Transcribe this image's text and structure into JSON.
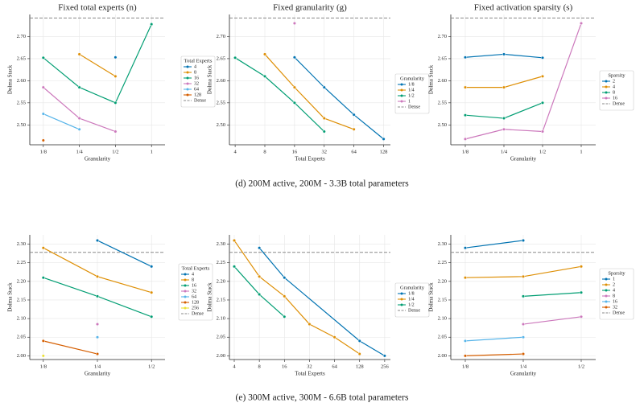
{
  "captions": [
    "(d) 200M active, 200M - 3.3B total parameters",
    "(e) 300M active, 300M - 6.6B total parameters"
  ],
  "chart_data": [
    {
      "type": "line",
      "title": "Fixed total experts (n)",
      "x_label": "Granularity",
      "y_label": "Dolma Stack",
      "categories": [
        "1/8",
        "1/4",
        "1/2",
        "1"
      ],
      "ylim": [
        2.455,
        2.75
      ],
      "yticks": [
        {
          "value": 2.5,
          "label": "2.50"
        },
        2.55,
        {
          "value": 2.6,
          "label": "2.60"
        },
        2.65,
        {
          "value": 2.7,
          "label": "2.70"
        }
      ],
      "grid": true,
      "legend_title": "Total Experts",
      "series": [
        {
          "name": "4",
          "color": "#0173b2",
          "values": [
            null,
            null,
            2.653,
            null
          ]
        },
        {
          "name": "8",
          "color": "#de8f05",
          "values": [
            null,
            2.66,
            2.61,
            null
          ]
        },
        {
          "name": "16",
          "color": "#029e73",
          "values": [
            2.652,
            2.585,
            2.55,
            2.728
          ]
        },
        {
          "name": "32",
          "color": "#cc78bc",
          "values": [
            2.585,
            2.515,
            2.485,
            null
          ]
        },
        {
          "name": "64",
          "color": "#56b4e9",
          "values": [
            2.525,
            2.49,
            null,
            null
          ]
        },
        {
          "name": "128",
          "color": "#d55e00",
          "values": [
            2.465,
            null,
            null,
            null
          ]
        }
      ],
      "hline": {
        "name": "Dense",
        "value": 2.742,
        "color": "#888888"
      }
    },
    {
      "type": "line",
      "title": "Fixed granularity (g)",
      "x_label": "Total Experts",
      "y_label": "Dolma Stack",
      "xscale": "log",
      "xlim": [
        3.5,
        150
      ],
      "xticks": [
        4,
        8,
        16,
        32,
        64,
        128
      ],
      "ylim": [
        2.455,
        2.75
      ],
      "yticks": [
        {
          "value": 2.5,
          "label": "2.50"
        },
        2.55,
        {
          "value": 2.6,
          "label": "2.60"
        },
        2.65,
        {
          "value": 2.7,
          "label": "2.70"
        }
      ],
      "grid": true,
      "legend_title": "Granularity",
      "series": [
        {
          "name": "1/8",
          "color": "#0173b2",
          "x": [
            16,
            32,
            64,
            128
          ],
          "values": [
            2.653,
            2.585,
            2.523,
            2.468
          ]
        },
        {
          "name": "1/4",
          "color": "#de8f05",
          "x": [
            8,
            16,
            32,
            64
          ],
          "values": [
            2.66,
            2.585,
            2.515,
            2.49
          ]
        },
        {
          "name": "1/2",
          "color": "#029e73",
          "x": [
            4,
            8,
            16,
            32
          ],
          "values": [
            2.652,
            2.61,
            2.55,
            2.485
          ]
        },
        {
          "name": "1",
          "color": "#cc78bc",
          "x": [
            16
          ],
          "values": [
            2.73
          ]
        }
      ],
      "hline": {
        "name": "Dense",
        "value": 2.742,
        "color": "#888888"
      }
    },
    {
      "type": "line",
      "title": "Fixed activation sparsity (s)",
      "x_label": "Granularity",
      "y_label": "Dolma Stack",
      "categories": [
        "1/8",
        "1/4",
        "1/2",
        "1"
      ],
      "ylim": [
        2.455,
        2.75
      ],
      "yticks": [
        {
          "value": 2.5,
          "label": "2.50"
        },
        2.55,
        {
          "value": 2.6,
          "label": "2.60"
        },
        2.65,
        {
          "value": 2.7,
          "label": "2.70"
        }
      ],
      "grid": true,
      "legend_title": "Sparsity",
      "series": [
        {
          "name": "2",
          "color": "#0173b2",
          "values": [
            2.653,
            2.66,
            2.652,
            null
          ]
        },
        {
          "name": "4",
          "color": "#de8f05",
          "values": [
            2.585,
            2.585,
            2.61,
            null
          ]
        },
        {
          "name": "8",
          "color": "#029e73",
          "values": [
            2.522,
            2.515,
            2.55,
            null
          ]
        },
        {
          "name": "16",
          "color": "#cc78bc",
          "values": [
            2.468,
            2.49,
            2.485,
            2.73
          ]
        }
      ],
      "hline": {
        "name": "Dense",
        "value": 2.742,
        "color": "#888888"
      }
    },
    {
      "type": "line",
      "x_label": "Granularity",
      "y_label": "Dolma Stack",
      "categories": [
        "1/8",
        "1/4",
        "1/2"
      ],
      "ylim": [
        1.99,
        2.325
      ],
      "yticks": [
        {
          "value": 2.0,
          "label": "2.00"
        },
        2.05,
        {
          "value": 2.1,
          "label": "2.10"
        },
        2.15,
        {
          "value": 2.2,
          "label": "2.20"
        },
        2.25,
        {
          "value": 2.3,
          "label": "2.30"
        }
      ],
      "grid": true,
      "legend_title": "Total Experts",
      "series": [
        {
          "name": "4",
          "color": "#0173b2",
          "values": [
            null,
            2.31,
            2.24
          ]
        },
        {
          "name": "8",
          "color": "#de8f05",
          "values": [
            2.29,
            2.213,
            2.17
          ]
        },
        {
          "name": "16",
          "color": "#029e73",
          "values": [
            2.21,
            2.16,
            2.105
          ]
        },
        {
          "name": "32",
          "color": "#cc78bc",
          "values": [
            null,
            2.085,
            null
          ]
        },
        {
          "name": "64",
          "color": "#56b4e9",
          "values": [
            null,
            2.05,
            null
          ]
        },
        {
          "name": "128",
          "color": "#d55e00",
          "values": [
            2.04,
            2.005,
            null
          ]
        },
        {
          "name": "256",
          "color": "#ece133",
          "values": [
            2.0,
            null,
            null
          ]
        }
      ],
      "hline": {
        "name": "Dense",
        "value": 2.278,
        "color": "#888888"
      }
    },
    {
      "type": "line",
      "x_label": "Total Experts",
      "y_label": "Dolma Stack",
      "xscale": "log",
      "xlim": [
        3.5,
        300
      ],
      "xticks": [
        4,
        8,
        16,
        32,
        64,
        128,
        256
      ],
      "ylim": [
        1.99,
        2.325
      ],
      "yticks": [
        {
          "value": 2.0,
          "label": "2.00"
        },
        2.05,
        {
          "value": 2.1,
          "label": "2.10"
        },
        2.15,
        {
          "value": 2.2,
          "label": "2.20"
        },
        2.25,
        {
          "value": 2.3,
          "label": "2.30"
        }
      ],
      "grid": true,
      "legend_title": "Granularity",
      "series": [
        {
          "name": "1/8",
          "color": "#0173b2",
          "x": [
            8,
            16,
            128,
            256
          ],
          "values": [
            2.29,
            2.21,
            2.04,
            2.0
          ]
        },
        {
          "name": "1/4",
          "color": "#de8f05",
          "x": [
            4,
            8,
            16,
            32,
            64,
            128
          ],
          "values": [
            2.31,
            2.213,
            2.16,
            2.085,
            2.05,
            2.005
          ]
        },
        {
          "name": "1/2",
          "color": "#029e73",
          "x": [
            4,
            8,
            16
          ],
          "values": [
            2.24,
            2.165,
            2.105
          ]
        }
      ],
      "hline": {
        "name": "Dense",
        "value": 2.278,
        "color": "#888888"
      }
    },
    {
      "type": "line",
      "x_label": "Granularity",
      "y_label": "Dolma Stack",
      "categories": [
        "1/8",
        "1/4",
        "1/2"
      ],
      "ylim": [
        1.99,
        2.325
      ],
      "yticks": [
        {
          "value": 2.0,
          "label": "2.00"
        },
        2.05,
        {
          "value": 2.1,
          "label": "2.10"
        },
        2.15,
        {
          "value": 2.2,
          "label": "2.20"
        },
        2.25,
        {
          "value": 2.3,
          "label": "2.30"
        }
      ],
      "grid": true,
      "legend_title": "Sparsity",
      "series": [
        {
          "name": "1",
          "color": "#0173b2",
          "values": [
            2.29,
            2.31,
            null
          ]
        },
        {
          "name": "2",
          "color": "#de8f05",
          "values": [
            2.21,
            2.213,
            2.24
          ]
        },
        {
          "name": "4",
          "color": "#029e73",
          "values": [
            null,
            2.16,
            2.17
          ]
        },
        {
          "name": "8",
          "color": "#cc78bc",
          "values": [
            null,
            2.085,
            2.105
          ]
        },
        {
          "name": "16",
          "color": "#56b4e9",
          "values": [
            2.04,
            2.05,
            null
          ]
        },
        {
          "name": "32",
          "color": "#d55e00",
          "values": [
            2.0,
            2.005,
            null
          ]
        }
      ],
      "hline": {
        "name": "Dense",
        "value": 2.278,
        "color": "#888888"
      }
    }
  ]
}
